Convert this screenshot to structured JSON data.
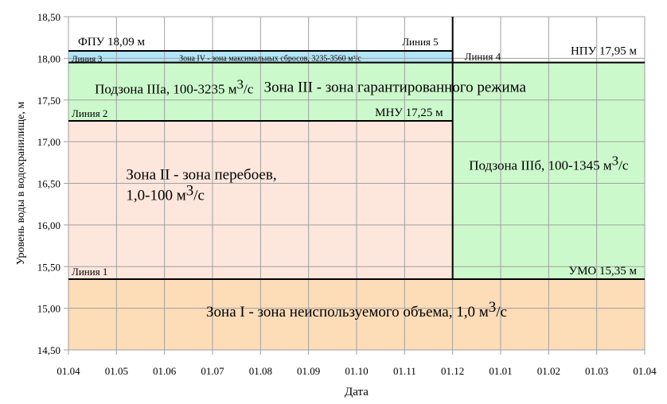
{
  "chart_data": {
    "type": "area",
    "title": "",
    "xlabel": "Дата",
    "ylabel": "Уровень воды в водохранилище, м",
    "ylim": [
      14.5,
      18.5
    ],
    "yticks": [
      "14,50",
      "15,00",
      "15,50",
      "16,00",
      "16,50",
      "17,00",
      "17,50",
      "18,00",
      "18,50"
    ],
    "ytick_values": [
      14.5,
      15,
      15.5,
      16,
      16.5,
      17,
      17.5,
      18,
      18.5
    ],
    "xticks": [
      "01.04",
      "01.05",
      "01.06",
      "01.07",
      "01.08",
      "01.09",
      "01.10",
      "01.11",
      "01.12",
      "01.01",
      "01.02",
      "01.03",
      "01.04"
    ],
    "grid": true,
    "zones": [
      {
        "name": "zone-1",
        "x": [
          0,
          12
        ],
        "y": [
          14.5,
          15.35
        ],
        "color": "#fddcb8",
        "label": "Зона I - зона неиспользуемого объема, 1,0 м",
        "sup": "3",
        "unit": "/с",
        "lx": 6,
        "ly": 14.9,
        "size": 19
      },
      {
        "name": "zone-2",
        "x": [
          0,
          8
        ],
        "y": [
          15.35,
          17.25
        ],
        "color": "#fde6dc",
        "label": "Зона II - зона перебоев,",
        "label2": "1,0-100 м",
        "sup": "3",
        "unit": "/с",
        "lx": 1.2,
        "ly": 16.55,
        "size": 19,
        "anchor": "start"
      },
      {
        "name": "subzone-3a",
        "x": [
          0,
          8
        ],
        "y": [
          17.25,
          17.95
        ],
        "color": "#ccf9cc",
        "label": "Подзона IIIа, 100-3235 м",
        "sup": "3",
        "unit": "/с",
        "lx": 2.2,
        "ly": 17.58,
        "size": 17,
        "anchor": "middle"
      },
      {
        "name": "subzone-3b",
        "x": [
          8,
          12
        ],
        "y": [
          15.35,
          17.95
        ],
        "color": "#ccf9cc",
        "label": "Подзона IIIб, 100-1345 м",
        "sup": "3",
        "unit": "/с",
        "lx": 10,
        "ly": 16.66,
        "size": 17,
        "anchor": "middle"
      },
      {
        "name": "zone-4",
        "x": [
          0,
          8
        ],
        "y": [
          17.95,
          18.09
        ],
        "color": "#b3e5f7",
        "label": "Зона IV - зона максимальных сбросов, 3235-3560 м³/с",
        "lx": 4.2,
        "ly": 17.97,
        "size": 10,
        "anchor": "middle"
      }
    ],
    "zone3_label": "Зона III - зона гарантированного режима",
    "levels": [
      {
        "name": "ФПУ",
        "label": "ФПУ 18,09 м",
        "value": 18.09
      },
      {
        "name": "НПУ",
        "label": "НПУ 17,95 м",
        "value": 17.95
      },
      {
        "name": "МНУ",
        "label": "МНУ 17,25 м",
        "value": 17.25
      },
      {
        "name": "УМО",
        "label": "УМО 15,35 м",
        "value": 15.35
      }
    ],
    "lines": [
      "Линия 1",
      "Линия 2",
      "Линия 3",
      "Линия 4",
      "Линия 5"
    ]
  }
}
